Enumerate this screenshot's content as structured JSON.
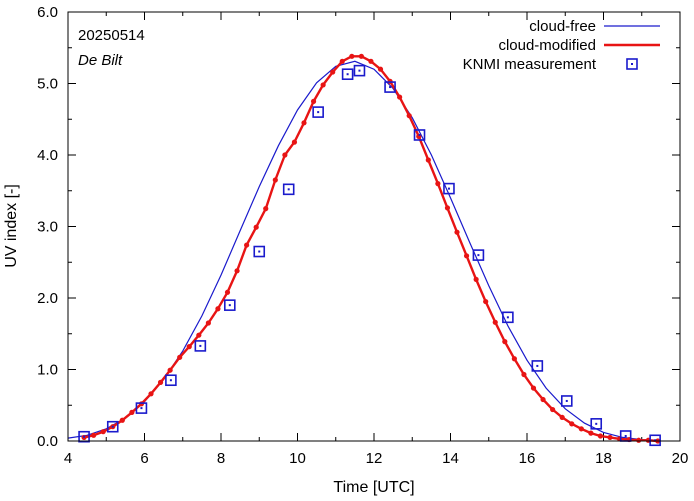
{
  "chart_data": {
    "type": "line",
    "title": "",
    "annotations": {
      "date": "20250514",
      "station": "De Bilt"
    },
    "xlabel": "Time  [UTC]",
    "ylabel": "UV index  [-]",
    "xlim": [
      4,
      20
    ],
    "ylim": [
      0,
      6
    ],
    "xticks": [
      4,
      6,
      8,
      10,
      12,
      14,
      16,
      18,
      20
    ],
    "xtick_labels": [
      "4",
      "6",
      "8",
      "10",
      "12",
      "14",
      "16",
      "18",
      "20"
    ],
    "yticks": [
      0,
      1,
      2,
      3,
      4,
      5,
      6
    ],
    "ytick_labels": [
      "0.0",
      "1.0",
      "2.0",
      "3.0",
      "4.0",
      "5.0",
      "6.0"
    ],
    "legend_position": "top-right",
    "colors": {
      "cloud_free": "#1a1acc",
      "cloud_modified": "#e81414",
      "measurement": "#1a1acc"
    },
    "series": [
      {
        "name": "cloud-free",
        "kind": "line",
        "x": [
          4.0,
          4.5,
          5.0,
          5.5,
          6.0,
          6.5,
          7.0,
          7.5,
          8.0,
          8.5,
          9.0,
          9.5,
          10.0,
          10.5,
          11.0,
          11.5,
          12.0,
          12.5,
          13.0,
          13.5,
          14.0,
          14.5,
          15.0,
          15.5,
          16.0,
          16.5,
          17.0,
          17.5,
          18.0,
          18.5,
          19.0,
          19.5
        ],
        "values": [
          0.04,
          0.08,
          0.17,
          0.32,
          0.55,
          0.86,
          1.26,
          1.75,
          2.32,
          2.94,
          3.56,
          4.13,
          4.63,
          5.01,
          5.24,
          5.31,
          5.2,
          4.93,
          4.52,
          4.0,
          3.4,
          2.78,
          2.17,
          1.61,
          1.13,
          0.74,
          0.45,
          0.25,
          0.12,
          0.05,
          0.02,
          0.01
        ]
      },
      {
        "name": "cloud-modified",
        "kind": "line+markers",
        "x": [
          4.42,
          4.67,
          4.92,
          5.17,
          5.42,
          5.67,
          5.92,
          6.17,
          6.42,
          6.67,
          6.92,
          7.17,
          7.42,
          7.67,
          7.92,
          8.17,
          8.42,
          8.67,
          8.92,
          9.17,
          9.42,
          9.67,
          9.92,
          10.17,
          10.42,
          10.67,
          10.92,
          11.17,
          11.42,
          11.67,
          11.92,
          12.17,
          12.42,
          12.67,
          12.92,
          13.17,
          13.42,
          13.67,
          13.92,
          14.17,
          14.42,
          14.67,
          14.92,
          15.17,
          15.42,
          15.67,
          15.92,
          16.17,
          16.42,
          16.67,
          16.92,
          17.17,
          17.42,
          17.67,
          17.92,
          18.17,
          18.42,
          18.67,
          18.92,
          19.17,
          19.42
        ],
        "values": [
          0.05,
          0.08,
          0.13,
          0.2,
          0.29,
          0.4,
          0.52,
          0.66,
          0.82,
          0.99,
          1.17,
          1.32,
          1.48,
          1.65,
          1.85,
          2.08,
          2.38,
          2.74,
          2.99,
          3.25,
          3.65,
          4.0,
          4.18,
          4.45,
          4.75,
          4.98,
          5.16,
          5.31,
          5.38,
          5.38,
          5.31,
          5.2,
          5.03,
          4.81,
          4.55,
          4.26,
          3.93,
          3.6,
          3.26,
          2.92,
          2.59,
          2.26,
          1.95,
          1.66,
          1.39,
          1.15,
          0.93,
          0.74,
          0.58,
          0.44,
          0.33,
          0.24,
          0.17,
          0.11,
          0.07,
          0.05,
          0.03,
          0.02,
          0.01,
          0.01,
          0.0
        ]
      },
      {
        "name": "KNMI measurement",
        "kind": "markers",
        "x": [
          4.42,
          5.17,
          5.92,
          6.69,
          7.46,
          8.23,
          9.0,
          9.77,
          10.54,
          11.31,
          11.62,
          12.42,
          13.19,
          13.96,
          14.73,
          15.5,
          16.27,
          17.04,
          17.81,
          18.58,
          19.35
        ],
        "values": [
          0.06,
          0.2,
          0.46,
          0.85,
          1.33,
          1.9,
          2.65,
          3.52,
          4.6,
          5.13,
          5.18,
          4.95,
          4.28,
          3.53,
          2.6,
          1.73,
          1.05,
          0.56,
          0.24,
          0.07,
          0.01
        ]
      }
    ]
  }
}
